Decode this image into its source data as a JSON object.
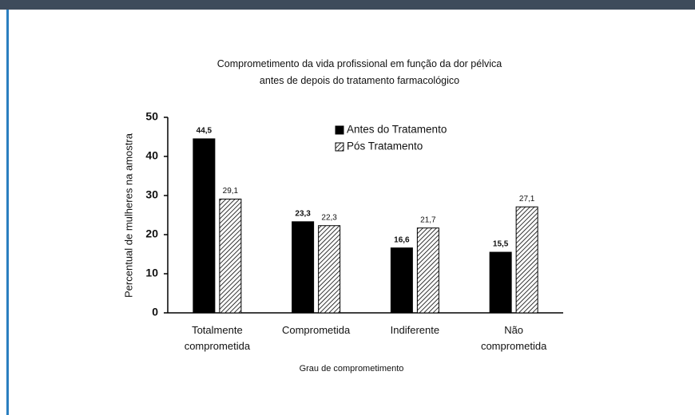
{
  "chart_data": {
    "type": "bar",
    "title": "Comprometimento da vida profissional em função da dor pélvica antes de depois do tratamento farmacológico",
    "x_label": "Grau de comprometimento",
    "y_label": "Percentual de mulheres na amostra",
    "categories": [
      "Totalmente comprometida",
      "Comprometida",
      "Indiferente",
      "Não comprometida"
    ],
    "series": [
      {
        "name": "Antes do Tratamento",
        "color": "#000000",
        "hatch": false,
        "values": [
          44.5,
          23.3,
          16.6,
          15.5
        ],
        "value_labels": [
          "44,5",
          "23,3",
          "16,6",
          "15,5"
        ]
      },
      {
        "name": "Pós Tratamento",
        "color": "#000000",
        "hatch": true,
        "values": [
          29.1,
          22.3,
          21.7,
          27.1
        ],
        "value_labels": [
          "29,1",
          "22,3",
          "21,7",
          "27,1"
        ]
      }
    ],
    "ylim": [
      0,
      50
    ],
    "yticks": [
      0,
      10,
      20,
      30,
      40,
      50
    ],
    "grid": false,
    "legend": "top-right"
  }
}
